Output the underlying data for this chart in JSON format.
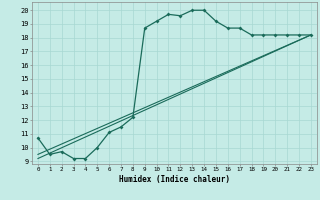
{
  "xlabel": "Humidex (Indice chaleur)",
  "bg_color": "#c5ebe6",
  "grid_color": "#a8d8d2",
  "line_color": "#1a6b5a",
  "xlim": [
    -0.5,
    23.5
  ],
  "ylim": [
    8.8,
    20.6
  ],
  "yticks": [
    9,
    10,
    11,
    12,
    13,
    14,
    15,
    16,
    17,
    18,
    19,
    20
  ],
  "xticks": [
    0,
    1,
    2,
    3,
    4,
    5,
    6,
    7,
    8,
    9,
    10,
    11,
    12,
    13,
    14,
    15,
    16,
    17,
    18,
    19,
    20,
    21,
    22,
    23
  ],
  "curve1_x": [
    0,
    1,
    2,
    3,
    4,
    5,
    6,
    7,
    8,
    9,
    10,
    11,
    12,
    13,
    14,
    15,
    16,
    17,
    18,
    19,
    20,
    21,
    22,
    23
  ],
  "curve1_y": [
    10.7,
    9.5,
    9.7,
    9.2,
    9.2,
    10.0,
    11.1,
    11.5,
    12.2,
    18.7,
    19.2,
    19.7,
    19.6,
    20.0,
    20.0,
    19.2,
    18.7,
    18.7,
    18.2,
    18.2,
    18.2,
    18.2,
    18.2,
    18.2
  ],
  "curve2_x": [
    0,
    23
  ],
  "curve2_y": [
    9.5,
    18.2
  ],
  "curve3_x": [
    0,
    23
  ],
  "curve3_y": [
    9.2,
    18.2
  ]
}
